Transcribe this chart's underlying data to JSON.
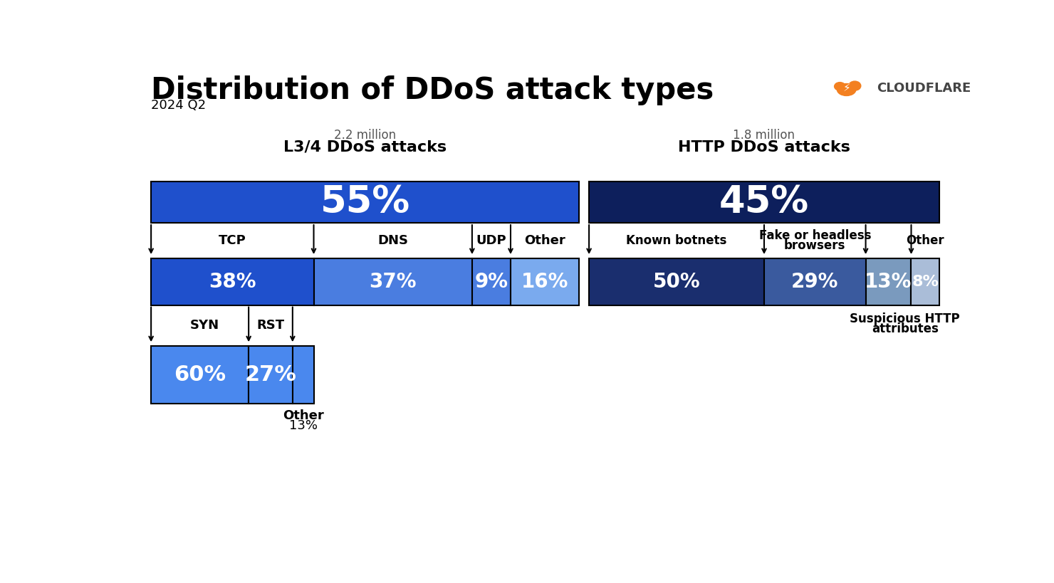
{
  "title": "Distribution of DDoS attack types",
  "subtitle": "2024 Q2",
  "bg_color": "#ffffff",
  "left_header_small": "2.2 million",
  "left_header_big": "L3/4 DDoS attacks",
  "right_header_small": "1.8 million",
  "right_header_big": "HTTP DDoS attacks",
  "left_pct": "55%",
  "right_pct": "45%",
  "left_color": "#1f50cc",
  "right_color": "#0d1f5c",
  "row2_left": [
    {
      "label": "TCP",
      "pct": "38%",
      "value": 38,
      "color": "#1f50cc"
    },
    {
      "label": "DNS",
      "pct": "37%",
      "value": 37,
      "color": "#4a7de0"
    },
    {
      "label": "UDP",
      "pct": "9%",
      "value": 9,
      "color": "#4a7de0"
    },
    {
      "label": "Other",
      "pct": "16%",
      "value": 16,
      "color": "#7aaaee"
    }
  ],
  "row2_right": [
    {
      "label": "Known botnets",
      "pct": "50%",
      "value": 50,
      "color": "#1a2e6e"
    },
    {
      "label": "Fake or headless\nbrowsers",
      "pct": "29%",
      "value": 29,
      "color": "#3a5a9e"
    },
    {
      "label": "Suspicious HTTP\nattributes",
      "pct": "13%",
      "value": 13,
      "color": "#7a9abe"
    },
    {
      "label": "Other",
      "pct": "8%",
      "value": 8,
      "color": "#aabdd8"
    }
  ],
  "row3_left": [
    {
      "label": "SYN",
      "pct": "60%",
      "value": 60,
      "color": "#4a88ee"
    },
    {
      "label": "RST",
      "pct": "27%",
      "value": 27,
      "color": "#4a88ee"
    },
    {
      "label": "",
      "pct": "",
      "value": 13,
      "color": "#4a88ee"
    }
  ],
  "row3_other_label": "Other",
  "row3_other_pct": "13%",
  "cloudflare_text": "CLOUDFLARE",
  "cloudflare_color": "#f38020",
  "cloudflare_text_color": "#444444"
}
